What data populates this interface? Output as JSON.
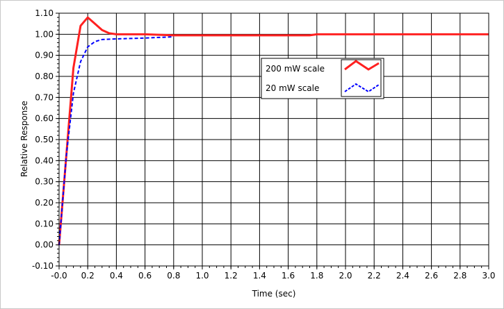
{
  "chart_data": {
    "type": "line",
    "xlabel": "Time (sec)",
    "ylabel": "Relative Response",
    "xlim": [
      -0.0,
      3.0
    ],
    "ylim": [
      -0.1,
      1.1
    ],
    "x_ticks": [
      "-0.0",
      "0.2",
      "0.4",
      "0.6",
      "0.8",
      "1.0",
      "1.2",
      "1.4",
      "1.6",
      "1.8",
      "2.0",
      "2.2",
      "2.4",
      "2.6",
      "2.8",
      "3.0"
    ],
    "y_ticks": [
      "1.10",
      "1.00",
      "0.90",
      "0.80",
      "0.70",
      "0.60",
      "0.50",
      "0.40",
      "0.30",
      "0.20",
      "0.10",
      "0.00",
      "-0.10"
    ],
    "grid": true,
    "legend_position": "upper-right-center",
    "series": [
      {
        "name": "200 mW scale",
        "color": "#ff2020",
        "style": "solid",
        "x": [
          0.0,
          0.05,
          0.1,
          0.15,
          0.2,
          0.25,
          0.3,
          0.35,
          0.4,
          0.5,
          0.6,
          0.8,
          1.0,
          1.5,
          1.75,
          1.8,
          2.0,
          2.5,
          3.0
        ],
        "y": [
          0.0,
          0.42,
          0.84,
          1.04,
          1.08,
          1.05,
          1.02,
          1.005,
          1.0,
          1.0,
          1.0,
          0.995,
          0.995,
          0.995,
          0.995,
          1.0,
          1.0,
          1.0,
          1.0
        ]
      },
      {
        "name": "20 mW scale",
        "color": "#0000ff",
        "style": "dashed",
        "x": [
          0.0,
          0.05,
          0.1,
          0.15,
          0.2,
          0.25,
          0.3,
          0.4,
          0.5,
          0.6,
          0.7,
          0.8
        ],
        "y": [
          0.0,
          0.42,
          0.72,
          0.87,
          0.94,
          0.965,
          0.975,
          0.978,
          0.98,
          0.982,
          0.985,
          0.988
        ]
      }
    ]
  }
}
